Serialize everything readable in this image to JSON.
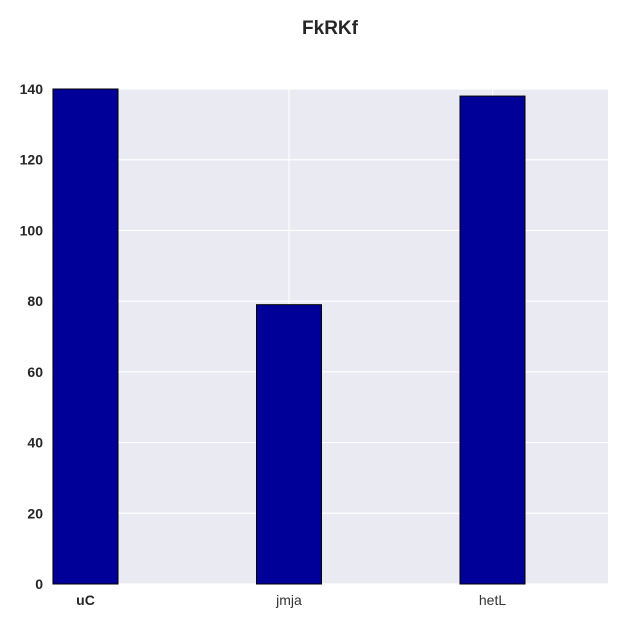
{
  "chart_data": {
    "type": "bar",
    "title": "FkRKf",
    "xlabel": "",
    "ylabel": "",
    "categories": [
      "uC",
      "jmja",
      "hetL"
    ],
    "values": [
      140,
      79,
      138
    ],
    "ylim": [
      0,
      140
    ],
    "yticks": [
      0,
      20,
      40,
      60,
      80,
      100,
      120,
      140
    ],
    "grid": true,
    "legend": "none",
    "colors": {
      "bar": "#000099",
      "bar_edge": "#000000",
      "plot_background": "#eaeaf2",
      "grid": "#ffffff"
    }
  }
}
